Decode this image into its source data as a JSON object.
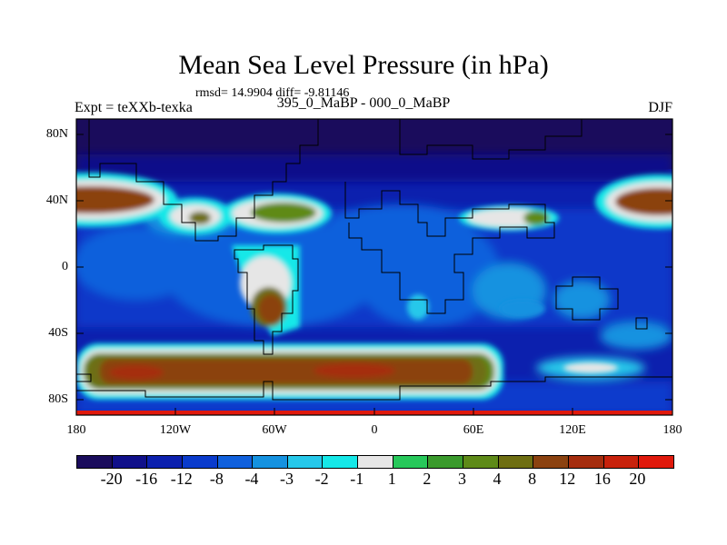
{
  "title": "Mean Sea Level Pressure (in hPa)",
  "stats": "rmsd= 14.9904 diff= -9.81146",
  "expt": "Expt = teXXb-texka",
  "subtitle": "395_0_MaBP - 000_0_MaBP",
  "season": "DJF",
  "y_ticks": [
    "80N",
    "40N",
    "0",
    "40S",
    "80S"
  ],
  "x_ticks": [
    "180",
    "120W",
    "60W",
    "0",
    "60E",
    "120E",
    "180"
  ],
  "legend": {
    "labels": [
      "-20",
      "-16",
      "-12",
      "-8",
      "-4",
      "-3",
      "-2",
      "-1",
      "1",
      "2",
      "3",
      "4",
      "8",
      "12",
      "16",
      "20"
    ],
    "colors": [
      "#1a0c5c",
      "#10108a",
      "#0c20ae",
      "#0a3bcc",
      "#1060dc",
      "#1592e0",
      "#26c8ea",
      "#15e8e8",
      "#e6e6e6",
      "#27c85a",
      "#3a9a2c",
      "#5e8a18",
      "#6e6e12",
      "#8b4210",
      "#a52d0e",
      "#c8220c",
      "#e0190c"
    ]
  },
  "chart_data": {
    "type": "heatmap",
    "title": "Mean Sea Level Pressure (in hPa)",
    "xlabel": "",
    "ylabel": "",
    "xlim": [
      -180,
      180
    ],
    "ylim": [
      -90,
      90
    ],
    "x_ticks": [
      "180",
      "120W",
      "60W",
      "0",
      "60E",
      "120E",
      "180"
    ],
    "y_ticks": [
      "80N",
      "40N",
      "0",
      "40S",
      "80S"
    ],
    "contour_levels": [
      -20,
      -16,
      -12,
      -8,
      -4,
      -3,
      -2,
      -1,
      1,
      2,
      3,
      4,
      8,
      12,
      16,
      20
    ],
    "colors": [
      "#1a0c5c",
      "#10108a",
      "#0c20ae",
      "#0a3bcc",
      "#1060dc",
      "#1592e0",
      "#26c8ea",
      "#15e8e8",
      "#e6e6e6",
      "#27c85a",
      "#3a9a2c",
      "#5e8a18",
      "#6e6e12",
      "#8b4210",
      "#a52d0e",
      "#c8220c",
      "#e0190c"
    ]
  }
}
